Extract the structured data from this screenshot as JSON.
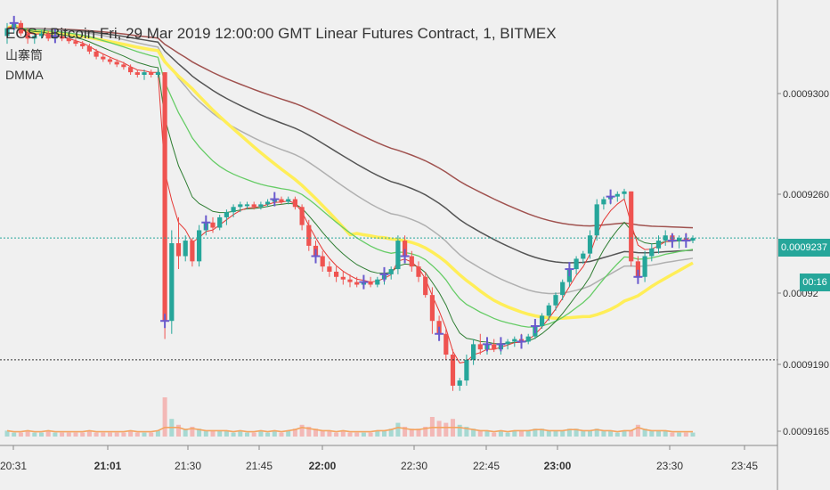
{
  "chart_data": {
    "type": "candlestick",
    "title": "EOS / Bitcoin Fri, 29 Mar 2019 12:00:00 GMT Linear Futures Contract, 1, BITMEX",
    "legend": [
      "山寨筒",
      "DMMA"
    ],
    "xlabel": "",
    "ylabel": "",
    "x_ticks": [
      {
        "label": "20:31",
        "bold": false
      },
      {
        "label": "21:01",
        "bold": true
      },
      {
        "label": "21:30",
        "bold": false
      },
      {
        "label": "21:45",
        "bold": false
      },
      {
        "label": "22:00",
        "bold": true
      },
      {
        "label": "22:30",
        "bold": false
      },
      {
        "label": "22:45",
        "bold": false
      },
      {
        "label": "23:00",
        "bold": true
      },
      {
        "label": "23:30",
        "bold": false
      },
      {
        "label": "23:45",
        "bold": false
      }
    ],
    "y_ticks": [
      "0.0009300",
      "0.0009260",
      "0.00092",
      "0.0009190",
      "0.0009165"
    ],
    "ylim": [
      0.000916,
      0.000934
    ],
    "current_price": "0.0009237",
    "countdown": "00:16",
    "colors": {
      "up": "#26a69a",
      "down": "#ef5350",
      "background": "#f0f0f0",
      "yellow": "#ffee58",
      "volume_line": "#f4a460"
    },
    "candles": [
      [
        0.0009315,
        0.000932,
        0.0009312,
        0.0009318
      ],
      [
        0.0009318,
        0.0009322,
        0.0009316,
        0.000932
      ],
      [
        0.000932,
        0.0009321,
        0.0009315,
        0.0009316
      ],
      [
        0.0009316,
        0.0009318,
        0.0009312,
        0.0009314
      ],
      [
        0.0009314,
        0.0009316,
        0.0009312,
        0.0009315
      ],
      [
        0.0009315,
        0.0009317,
        0.0009314,
        0.0009316
      ],
      [
        0.0009316,
        0.0009317,
        0.0009313,
        0.0009314
      ],
      [
        0.0009314,
        0.0009316,
        0.0009313,
        0.0009315
      ],
      [
        0.0009315,
        0.0009316,
        0.0009313,
        0.0009314
      ],
      [
        0.0009314,
        0.0009315,
        0.0009312,
        0.0009313
      ],
      [
        0.0009313,
        0.0009314,
        0.0009311,
        0.0009312
      ],
      [
        0.0009312,
        0.0009313,
        0.000931,
        0.0009311
      ],
      [
        0.0009311,
        0.0009312,
        0.0009308,
        0.0009309
      ],
      [
        0.0009309,
        0.000931,
        0.0009306,
        0.0009307
      ],
      [
        0.0009307,
        0.0009308,
        0.0009305,
        0.0009306
      ],
      [
        0.0009306,
        0.0009307,
        0.0009304,
        0.0009305
      ],
      [
        0.0009305,
        0.0009306,
        0.0009303,
        0.0009304
      ],
      [
        0.0009304,
        0.0009305,
        0.0009302,
        0.0009303
      ],
      [
        0.0009303,
        0.0009304,
        0.00093,
        0.0009301
      ],
      [
        0.0009301,
        0.0009302,
        0.0009299,
        0.00093
      ],
      [
        0.00093,
        0.0009302,
        0.0009298,
        0.0009301
      ],
      [
        0.0009301,
        0.0009302,
        0.0009299,
        0.00093
      ],
      [
        0.00093,
        0.0009302,
        0.0009299,
        0.0009301
      ],
      [
        0.0009301,
        0.0009301,
        0.0009198,
        0.0009205
      ],
      [
        0.0009205,
        0.000924,
        0.00092,
        0.0009235
      ],
      [
        0.0009235,
        0.0009245,
        0.0009225,
        0.000923
      ],
      [
        0.000923,
        0.0009238,
        0.0009228,
        0.0009236
      ],
      [
        0.0009236,
        0.0009237,
        0.0009226,
        0.0009228
      ],
      [
        0.0009228,
        0.0009242,
        0.0009226,
        0.000924
      ],
      [
        0.000924,
        0.0009244,
        0.0009238,
        0.0009243
      ],
      [
        0.0009243,
        0.0009245,
        0.0009239,
        0.0009241
      ],
      [
        0.0009241,
        0.0009246,
        0.000924,
        0.0009245
      ],
      [
        0.0009245,
        0.0009248,
        0.0009242,
        0.0009247
      ],
      [
        0.0009247,
        0.000925,
        0.0009245,
        0.0009249
      ],
      [
        0.0009249,
        0.0009251,
        0.0009247,
        0.000925
      ],
      [
        0.000925,
        0.0009251,
        0.0009248,
        0.000925
      ],
      [
        0.000925,
        0.0009251,
        0.0009248,
        0.0009249
      ],
      [
        0.0009249,
        0.0009251,
        0.0009248,
        0.000925
      ],
      [
        0.000925,
        0.0009252,
        0.0009249,
        0.0009251
      ],
      [
        0.0009251,
        0.0009253,
        0.000925,
        0.0009252
      ],
      [
        0.0009252,
        0.0009253,
        0.000925,
        0.0009251
      ],
      [
        0.0009251,
        0.0009253,
        0.000925,
        0.0009252
      ],
      [
        0.0009252,
        0.0009253,
        0.0009248,
        0.0009249
      ],
      [
        0.0009249,
        0.000925,
        0.000924,
        0.0009242
      ],
      [
        0.0009242,
        0.0009244,
        0.0009232,
        0.0009234
      ],
      [
        0.0009234,
        0.0009236,
        0.0009228,
        0.000923
      ],
      [
        0.000923,
        0.0009232,
        0.0009224,
        0.0009226
      ],
      [
        0.0009226,
        0.0009228,
        0.0009222,
        0.0009224
      ],
      [
        0.0009224,
        0.0009226,
        0.000922,
        0.0009222
      ],
      [
        0.0009222,
        0.0009224,
        0.0009219,
        0.0009221
      ],
      [
        0.0009221,
        0.0009223,
        0.0009218,
        0.000922
      ],
      [
        0.000922,
        0.0009222,
        0.0009218,
        0.0009219
      ],
      [
        0.0009219,
        0.0009221,
        0.0009218,
        0.000922
      ],
      [
        0.000922,
        0.0009222,
        0.0009218,
        0.0009219
      ],
      [
        0.0009219,
        0.0009222,
        0.0009218,
        0.0009221
      ],
      [
        0.0009221,
        0.0009224,
        0.0009219,
        0.0009223
      ],
      [
        0.0009223,
        0.0009226,
        0.0009221,
        0.0009225
      ],
      [
        0.0009225,
        0.0009238,
        0.0009223,
        0.0009236
      ],
      [
        0.0009236,
        0.0009238,
        0.0009228,
        0.000923
      ],
      [
        0.000923,
        0.0009232,
        0.0009224,
        0.0009226
      ],
      [
        0.0009226,
        0.0009228,
        0.000922,
        0.0009222
      ],
      [
        0.0009222,
        0.0009224,
        0.0009214,
        0.0009215
      ],
      [
        0.0009215,
        0.0009218,
        0.00092,
        0.0009205
      ],
      [
        0.0009205,
        0.0009207,
        0.0009198,
        0.00092
      ],
      [
        0.00092,
        0.0009202,
        0.000919,
        0.0009192
      ],
      [
        0.0009192,
        0.0009194,
        0.0009178,
        0.000918
      ],
      [
        0.000918,
        0.0009183,
        0.0009178,
        0.0009182
      ],
      [
        0.0009182,
        0.0009192,
        0.000918,
        0.000919
      ],
      [
        0.000919,
        0.0009198,
        0.0009188,
        0.0009196
      ],
      [
        0.0009196,
        0.00092,
        0.0009192,
        0.0009194
      ],
      [
        0.0009194,
        0.0009198,
        0.0009192,
        0.0009196
      ],
      [
        0.0009196,
        0.0009198,
        0.0009193,
        0.0009194
      ],
      [
        0.0009194,
        0.0009197,
        0.0009192,
        0.0009196
      ],
      [
        0.0009196,
        0.0009198,
        0.0009194,
        0.0009197
      ],
      [
        0.0009197,
        0.0009199,
        0.0009195,
        0.0009198
      ],
      [
        0.0009198,
        0.00092,
        0.0009196,
        0.0009197
      ],
      [
        0.0009197,
        0.00092,
        0.0009196,
        0.0009199
      ],
      [
        0.0009199,
        0.0009204,
        0.0009198,
        0.0009203
      ],
      [
        0.0009203,
        0.0009208,
        0.0009202,
        0.0009207
      ],
      [
        0.0009207,
        0.0009212,
        0.0009205,
        0.0009211
      ],
      [
        0.0009211,
        0.0009216,
        0.0009209,
        0.0009215
      ],
      [
        0.0009215,
        0.0009221,
        0.0009213,
        0.000922
      ],
      [
        0.000922,
        0.0009226,
        0.0009218,
        0.0009225
      ],
      [
        0.0009225,
        0.000923,
        0.0009223,
        0.0009229
      ],
      [
        0.0009229,
        0.0009232,
        0.0009227,
        0.0009231
      ],
      [
        0.0009231,
        0.000924,
        0.0009229,
        0.0009238
      ],
      [
        0.0009238,
        0.0009252,
        0.0009236,
        0.000925
      ],
      [
        0.000925,
        0.0009253,
        0.0009248,
        0.0009252
      ],
      [
        0.0009252,
        0.0009254,
        0.000925,
        0.0009253
      ],
      [
        0.0009253,
        0.0009255,
        0.0009251,
        0.0009254
      ],
      [
        0.0009254,
        0.0009256,
        0.0009252,
        0.0009255
      ],
      [
        0.0009255,
        0.0009255,
        0.0009226,
        0.0009228
      ],
      [
        0.0009228,
        0.000923,
        0.000922,
        0.0009222
      ],
      [
        0.0009222,
        0.0009232,
        0.000922,
        0.000923
      ],
      [
        0.000923,
        0.0009235,
        0.0009228,
        0.0009233
      ],
      [
        0.0009233,
        0.0009238,
        0.0009231,
        0.0009236
      ],
      [
        0.0009236,
        0.000924,
        0.0009234,
        0.0009238
      ],
      [
        0.0009238,
        0.0009239,
        0.0009234,
        0.0009236
      ],
      [
        0.0009236,
        0.0009238,
        0.0009233,
        0.0009237
      ],
      [
        0.0009237,
        0.0009239,
        0.0009234,
        0.0009236
      ],
      [
        0.0009236,
        0.0009238,
        0.0009235,
        0.0009237
      ]
    ],
    "volumes": [
      3,
      2,
      2,
      3,
      2,
      2,
      3,
      2,
      2,
      2,
      2,
      2,
      3,
      2,
      2,
      2,
      2,
      2,
      3,
      2,
      2,
      2,
      3,
      20,
      9,
      6,
      4,
      5,
      4,
      3,
      3,
      3,
      3,
      2,
      3,
      2,
      2,
      3,
      2,
      3,
      2,
      3,
      4,
      6,
      5,
      4,
      3,
      3,
      2,
      3,
      2,
      2,
      2,
      2,
      3,
      3,
      4,
      7,
      5,
      4,
      4,
      5,
      10,
      8,
      7,
      9,
      6,
      5,
      4,
      3,
      3,
      2,
      3,
      2,
      3,
      3,
      3,
      4,
      4,
      3,
      3,
      3,
      4,
      4,
      3,
      3,
      4,
      3,
      3,
      2,
      3,
      3,
      6,
      4,
      3,
      3,
      3,
      2,
      2,
      2,
      2
    ],
    "markers": [
      1,
      7,
      23,
      29,
      39,
      45,
      52,
      55,
      58,
      63,
      70,
      72,
      75,
      77,
      82,
      88,
      92,
      97,
      99
    ]
  }
}
